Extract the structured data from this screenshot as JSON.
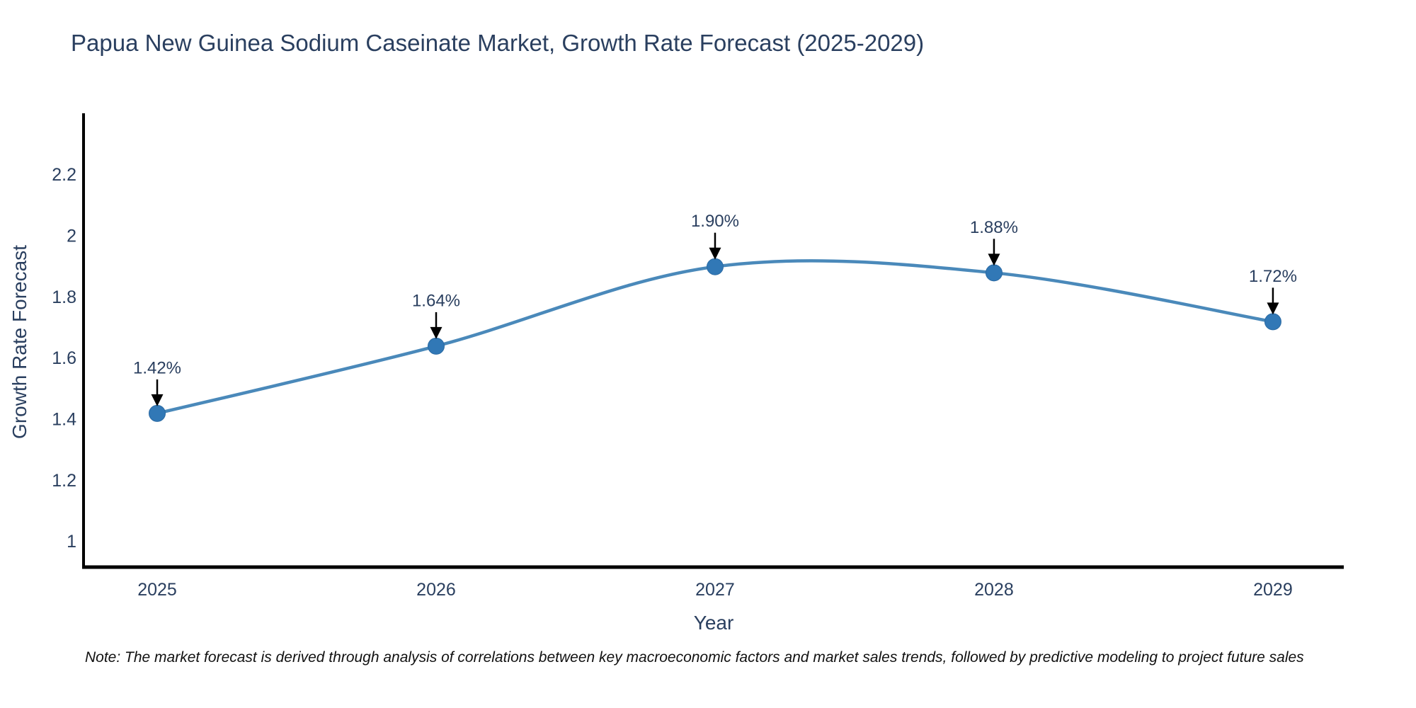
{
  "page": {
    "title": "Papua New Guinea Sodium Caseinate Market, Growth Rate Forecast (2025-2029)",
    "note": "Note: The market forecast is derived through analysis of correlations between key macroeconomic factors and market sales trends, followed by predictive modeling to project future sales"
  },
  "chart_data": {
    "type": "line",
    "title": "Papua New Guinea Sodium Caseinate Market, Growth Rate Forecast (2025-2029)",
    "xlabel": "Year",
    "ylabel": "Growth Rate Forecast",
    "x": [
      2025,
      2026,
      2027,
      2028,
      2029
    ],
    "series": [
      {
        "name": "Growth Rate Forecast",
        "values": [
          1.42,
          1.64,
          1.9,
          1.88,
          1.72
        ],
        "point_labels": [
          "1.42%",
          "1.64%",
          "1.90%",
          "1.88%",
          "1.72%"
        ]
      }
    ],
    "line_shape": "spline",
    "grid": false,
    "legend_position": "none",
    "xticks": [
      "2025",
      "2026",
      "2027",
      "2028",
      "2029"
    ],
    "yticks": [
      1,
      1.2,
      1.4,
      1.6,
      1.8,
      2,
      2.2
    ],
    "ytick_labels": [
      "1",
      "1.2",
      "1.4",
      "1.6",
      "1.8",
      "2",
      "2.2"
    ],
    "xlim": [
      2024.736,
      2029.254
    ],
    "ylim": [
      0.917,
      2.402
    ],
    "annotations_have_arrows": true,
    "colors": {
      "line": "#4a89ba",
      "marker": "#3178b6",
      "marker_edge": "#2b6aa3",
      "axis": "#000000",
      "tick_text": "#2a3f5f",
      "annotation_text": "#2a3f5f",
      "arrow": "#000000"
    }
  }
}
